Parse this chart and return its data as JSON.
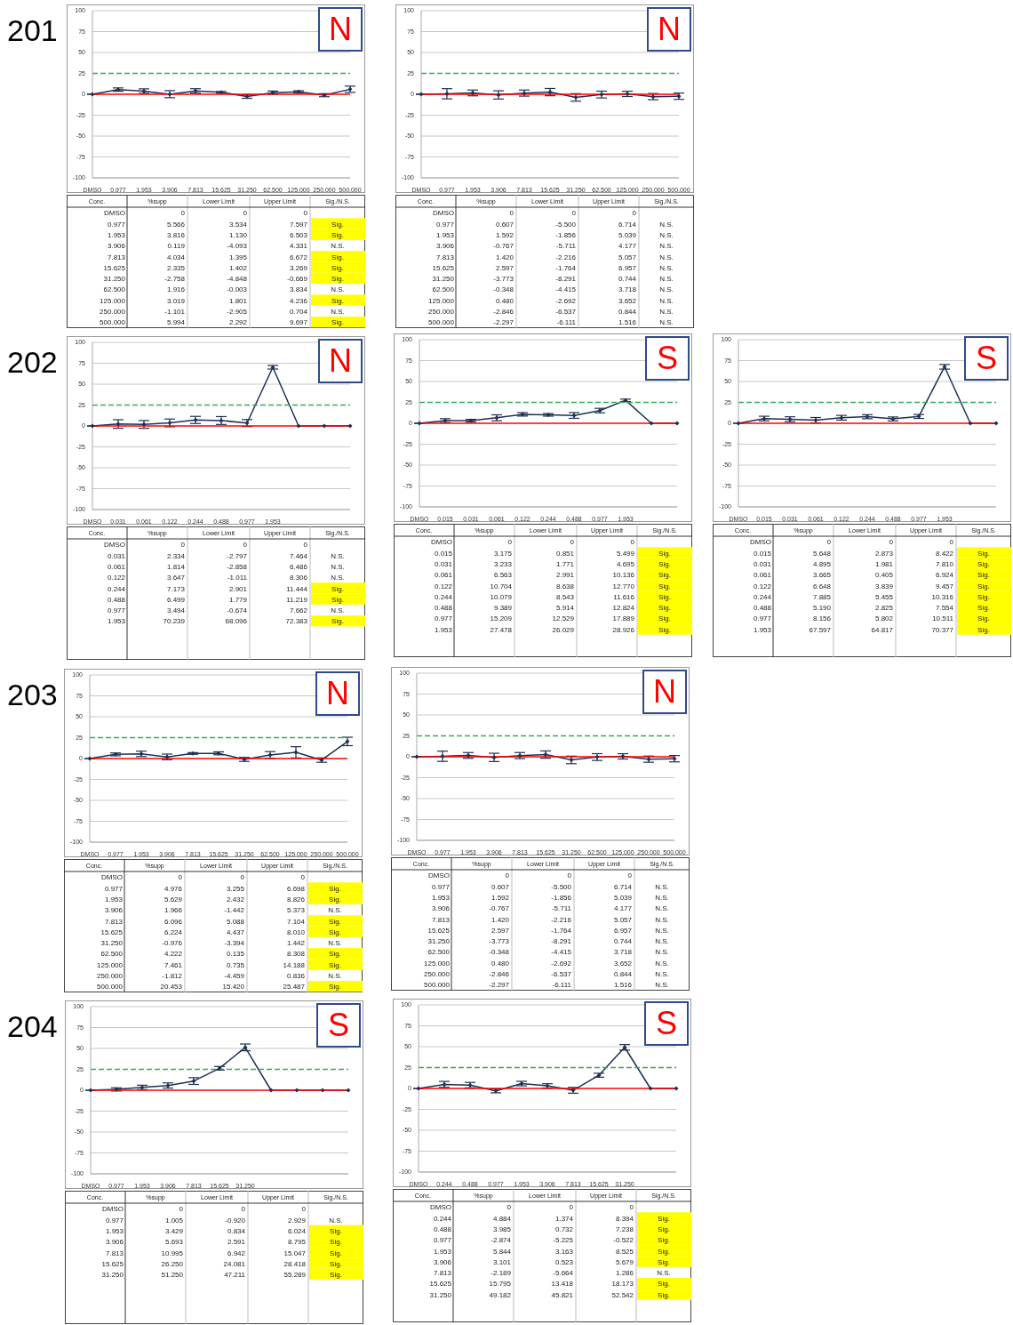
{
  "chart_data": [
    {
      "type": "line",
      "title": "201",
      "categories": [
        "DMSO",
        "0.977",
        "1.953",
        "3.906",
        "7.813",
        "15.625",
        "31.250",
        "62.500",
        "125.000",
        "250.000",
        "500.000"
      ],
      "series": [
        {
          "color": "#1f3050",
          "values": [
            0,
            5.566,
            3.816,
            0.119,
            4.034,
            2.335,
            -2.758,
            1.916,
            3.019,
            -1.101,
            5.994
          ],
          "errors": [
            [
              0,
              0
            ],
            [
              3.534,
              7.597
            ],
            [
              1.13,
              6.503
            ],
            [
              -4.093,
              4.331
            ],
            [
              1.395,
              6.672
            ],
            [
              1.402,
              3.269
            ],
            [
              -4.848,
              -0.669
            ],
            [
              -0.003,
              3.834
            ],
            [
              1.801,
              4.236
            ],
            [
              -2.905,
              0.704
            ],
            [
              2.292,
              9.697
            ]
          ]
        }
      ],
      "ylim": [
        -100,
        100
      ],
      "yticks": [
        -100,
        -75,
        -50,
        -25,
        0,
        25,
        50,
        75,
        100
      ],
      "grid": "y",
      "marker": "diamond",
      "line_style": "solid",
      "ref_lines": [
        {
          "axis": "y",
          "value": 0,
          "color": "#ff0000",
          "line_style": "solid"
        },
        {
          "axis": "y",
          "value": 25,
          "color": "#33aa55",
          "line_style": "dashed"
        }
      ],
      "annotations": [
        "N"
      ]
    },
    {
      "type": "heatmap",
      "ylabel": "Conc.",
      "categories": [
        "%supp",
        "Lower Limit",
        "Upper Limit",
        "Sig./N.S."
      ],
      "y_categories": [
        "DMSO",
        "0.977",
        "1.953",
        "3.906",
        "7.813",
        "15.625",
        "31.250",
        "62.500",
        "125.000",
        "250.000",
        "500.000"
      ],
      "cells": [
        [
          0,
          0,
          0,
          null
        ],
        [
          5.566,
          3.534,
          7.597,
          null
        ],
        [
          3.816,
          1.13,
          6.503,
          null
        ],
        [
          0.119,
          -4.093,
          4.331,
          null
        ],
        [
          4.034,
          1.395,
          6.672,
          null
        ],
        [
          2.335,
          1.402,
          3.269,
          null
        ],
        [
          -2.758,
          -4.848,
          -0.669,
          null
        ],
        [
          1.916,
          -0.003,
          3.834,
          null
        ],
        [
          3.019,
          1.801,
          4.236,
          null
        ],
        [
          -1.101,
          -2.905,
          0.704,
          null
        ],
        [
          5.994,
          2.292,
          9.697,
          null
        ]
      ],
      "cell_labels": [
        [
          "0",
          "0",
          "0",
          null
        ],
        [
          "5.566",
          "3.534",
          "7.597",
          "Sig."
        ],
        [
          "3.816",
          "1.130",
          "6.503",
          "Sig."
        ],
        [
          "0.119",
          "-4.093",
          "4.331",
          "N.S."
        ],
        [
          "4.034",
          "1.395",
          "6.672",
          "Sig."
        ],
        [
          "2.335",
          "1.402",
          "3.269",
          "Sig."
        ],
        [
          "-2.758",
          "-4.848",
          "-0.669",
          "Sig."
        ],
        [
          "1.916",
          "-0.003",
          "3.834",
          "N.S."
        ],
        [
          "3.019",
          "1.801",
          "4.236",
          "Sig."
        ],
        [
          "-1.101",
          "-2.905",
          "0.704",
          "N.S."
        ],
        [
          "5.994",
          "2.292",
          "9.697",
          "Sig."
        ]
      ]
    },
    {
      "type": "line",
      "categories": [
        "DMSO",
        "0.977",
        "1.953",
        "3.906",
        "7.813",
        "15.625",
        "31.250",
        "62.500",
        "125.000",
        "250.000",
        "500.000"
      ],
      "series": [
        {
          "color": "#1f3050",
          "values": [
            0,
            0.607,
            1.592,
            -0.767,
            1.42,
            2.597,
            -3.773,
            -0.348,
            0.48,
            -2.846,
            -2.297
          ],
          "errors": [
            [
              0,
              0
            ],
            [
              -5.5,
              6.714
            ],
            [
              -1.856,
              5.039
            ],
            [
              -5.711,
              4.177
            ],
            [
              -2.216,
              5.057
            ],
            [
              -1.764,
              6.957
            ],
            [
              -8.291,
              0.744
            ],
            [
              -4.415,
              3.718
            ],
            [
              -2.692,
              3.652
            ],
            [
              -6.537,
              0.844
            ],
            [
              -6.111,
              1.516
            ]
          ]
        }
      ],
      "ylim": [
        -100,
        100
      ],
      "yticks": [
        -100,
        -75,
        -50,
        -25,
        0,
        25,
        50,
        75,
        100
      ],
      "grid": "y",
      "marker": "diamond",
      "line_style": "solid",
      "ref_lines": [
        {
          "axis": "y",
          "value": 0,
          "color": "#ff0000",
          "line_style": "solid"
        },
        {
          "axis": "y",
          "value": 25,
          "color": "#33aa55",
          "line_style": "dashed"
        }
      ],
      "annotations": [
        "N"
      ]
    },
    {
      "type": "heatmap",
      "ylabel": "Conc.",
      "categories": [
        "%supp",
        "Lower Limit",
        "Upper Limit",
        "Sig./N.S."
      ],
      "y_categories": [
        "DMSO",
        "0.977",
        "1.953",
        "3.906",
        "7.813",
        "15.625",
        "31.250",
        "62.500",
        "125.000",
        "250.000",
        "500.000"
      ],
      "cells": [
        [
          0,
          0,
          0,
          null
        ],
        [
          0.607,
          -5.5,
          6.714,
          null
        ],
        [
          1.592,
          -1.856,
          5.039,
          null
        ],
        [
          -0.767,
          -5.711,
          4.177,
          null
        ],
        [
          1.42,
          -2.216,
          5.057,
          null
        ],
        [
          2.597,
          -1.764,
          6.957,
          null
        ],
        [
          -3.773,
          -8.291,
          0.744,
          null
        ],
        [
          -0.348,
          -4.415,
          3.718,
          null
        ],
        [
          0.48,
          -2.692,
          3.652,
          null
        ],
        [
          -2.846,
          -6.537,
          0.844,
          null
        ],
        [
          -2.297,
          -6.111,
          1.516,
          null
        ]
      ],
      "cell_labels": [
        [
          "0",
          "0",
          "0",
          null
        ],
        [
          "0.607",
          "-5.500",
          "6.714",
          "N.S."
        ],
        [
          "1.592",
          "-1.856",
          "5.039",
          "N.S."
        ],
        [
          "-0.767",
          "-5.711",
          "4.177",
          "N.S."
        ],
        [
          "1.420",
          "-2.216",
          "5.057",
          "N.S."
        ],
        [
          "2.597",
          "-1.764",
          "6.957",
          "N.S."
        ],
        [
          "-3.773",
          "-8.291",
          "0.744",
          "N.S."
        ],
        [
          "-0.348",
          "-4.415",
          "3.718",
          "N.S."
        ],
        [
          "0.480",
          "-2.692",
          "3.652",
          "N.S."
        ],
        [
          "-2.846",
          "-6.537",
          "0.844",
          "N.S."
        ],
        [
          "-2.297",
          "-6.111",
          "1.516",
          "N.S."
        ]
      ]
    },
    {
      "type": "line",
      "title": "202",
      "categories": [
        "DMSO",
        "0.031",
        "0.061",
        "0.122",
        "0.244",
        "0.488",
        "0.977",
        "1.953",
        null,
        null,
        null
      ],
      "series": [
        {
          "color": "#1f3050",
          "values": [
            0,
            2.334,
            1.814,
            3.647,
            7.173,
            6.499,
            3.494,
            70.239,
            0,
            0,
            0
          ],
          "errors": [
            [
              0,
              0
            ],
            [
              -2.797,
              7.464
            ],
            [
              -2.858,
              6.486
            ],
            [
              -1.011,
              8.306
            ],
            [
              2.901,
              11.444
            ],
            [
              1.779,
              11.219
            ],
            [
              -0.674,
              7.662
            ],
            [
              68.096,
              72.383
            ],
            null,
            null,
            null
          ]
        }
      ],
      "ylim": [
        -100,
        100
      ],
      "yticks": [
        -100,
        -75,
        -50,
        -25,
        0,
        25,
        50,
        75,
        100
      ],
      "grid": "y",
      "marker": "diamond",
      "line_style": "solid",
      "ref_lines": [
        {
          "axis": "y",
          "value": 0,
          "color": "#ff0000",
          "line_style": "solid"
        },
        {
          "axis": "y",
          "value": 25,
          "color": "#33aa55",
          "line_style": "dashed"
        }
      ],
      "annotations": [
        "N"
      ]
    },
    {
      "type": "heatmap",
      "ylabel": "Conc.",
      "categories": [
        "%supp",
        "Lower Limit",
        "Upper Limit",
        "Sig./N.S."
      ],
      "y_categories": [
        "DMSO",
        "0.031",
        "0.061",
        "0.122",
        "0.244",
        "0.488",
        "0.977",
        "1.953"
      ],
      "cells": [
        [
          0,
          0,
          0,
          null
        ],
        [
          2.334,
          -2.797,
          7.464,
          null
        ],
        [
          1.814,
          -2.858,
          6.486,
          null
        ],
        [
          3.647,
          -1.011,
          8.306,
          null
        ],
        [
          7.173,
          2.901,
          11.444,
          null
        ],
        [
          6.499,
          1.779,
          11.219,
          null
        ],
        [
          3.494,
          -0.674,
          7.662,
          null
        ],
        [
          70.239,
          68.096,
          72.383,
          null
        ]
      ],
      "cell_labels": [
        [
          "0",
          "0",
          "0",
          null
        ],
        [
          "2.334",
          "-2.797",
          "7.464",
          "N.S."
        ],
        [
          "1.814",
          "-2.858",
          "6.486",
          "N.S."
        ],
        [
          "3.647",
          "-1.011",
          "8.306",
          "N.S."
        ],
        [
          "7.173",
          "2.901",
          "11.444",
          "Sig."
        ],
        [
          "6.499",
          "1.779",
          "11.219",
          "Sig."
        ],
        [
          "3.494",
          "-0.674",
          "7.662",
          "N.S."
        ],
        [
          "70.239",
          "68.096",
          "72.383",
          "Sig."
        ]
      ]
    },
    {
      "type": "line",
      "categories": [
        "DMSO",
        "0.015",
        "0.031",
        "0.061",
        "0.122",
        "0.244",
        "0.488",
        "0.977",
        "1.953",
        null,
        null
      ],
      "series": [
        {
          "color": "#1f3050",
          "values": [
            0,
            3.175,
            3.233,
            6.563,
            10.704,
            10.079,
            9.389,
            15.209,
            27.478,
            0,
            0
          ],
          "errors": [
            [
              0,
              0
            ],
            [
              0.851,
              5.499
            ],
            [
              1.771,
              4.695
            ],
            [
              2.991,
              10.136
            ],
            [
              8.638,
              12.77
            ],
            [
              8.543,
              11.616
            ],
            [
              5.914,
              12.824
            ],
            [
              12.529,
              17.889
            ],
            [
              26.029,
              28.926
            ],
            null,
            null
          ]
        }
      ],
      "ylim": [
        -100,
        100
      ],
      "yticks": [
        -100,
        -75,
        -50,
        -25,
        0,
        25,
        50,
        75,
        100
      ],
      "grid": "y",
      "marker": "diamond",
      "line_style": "solid",
      "ref_lines": [
        {
          "axis": "y",
          "value": 0,
          "color": "#ff0000",
          "line_style": "solid"
        },
        {
          "axis": "y",
          "value": 25,
          "color": "#33aa55",
          "line_style": "dashed"
        }
      ],
      "annotations": [
        "S"
      ]
    },
    {
      "type": "heatmap",
      "ylabel": "Conc.",
      "categories": [
        "%supp",
        "Lower Limit",
        "Upper Limit",
        "Sig./N.S."
      ],
      "y_categories": [
        "DMSO",
        "0.015",
        "0.031",
        "0.061",
        "0.122",
        "0.244",
        "0.488",
        "0.977",
        "1.953"
      ],
      "cells": [
        [
          0,
          0,
          0,
          null
        ],
        [
          3.175,
          0.851,
          5.499,
          null
        ],
        [
          3.233,
          1.771,
          4.695,
          null
        ],
        [
          6.563,
          2.991,
          10.136,
          null
        ],
        [
          10.704,
          8.638,
          12.77,
          null
        ],
        [
          10.079,
          8.543,
          11.616,
          null
        ],
        [
          9.389,
          5.914,
          12.824,
          null
        ],
        [
          15.209,
          12.529,
          17.889,
          null
        ],
        [
          27.478,
          26.029,
          28.926,
          null
        ]
      ],
      "cell_labels": [
        [
          "0",
          "0",
          "0",
          null
        ],
        [
          "3.175",
          "0.851",
          "5.499",
          "Sig."
        ],
        [
          "3.233",
          "1.771",
          "4.695",
          "Sig."
        ],
        [
          "6.563",
          "2.991",
          "10.136",
          "Sig."
        ],
        [
          "10.704",
          "8.638",
          "12.770",
          "Sig."
        ],
        [
          "10.079",
          "8.543",
          "11.616",
          "Sig."
        ],
        [
          "9.389",
          "5.914",
          "12.824",
          "Sig."
        ],
        [
          "15.209",
          "12.529",
          "17.889",
          "Sig."
        ],
        [
          "27.478",
          "26.029",
          "28.926",
          "Sig."
        ]
      ]
    },
    {
      "type": "line",
      "categories": [
        "DMSO",
        "0.015",
        "0.031",
        "0.061",
        "0.122",
        "0.244",
        "0.488",
        "0.977",
        "1.953",
        null,
        null
      ],
      "series": [
        {
          "color": "#1f3050",
          "values": [
            0,
            5.648,
            4.895,
            3.665,
            6.648,
            7.885,
            5.19,
            8.156,
            67.597,
            0,
            0
          ],
          "errors": [
            [
              0,
              0
            ],
            [
              2.873,
              8.422
            ],
            [
              1.981,
              7.81
            ],
            [
              0.405,
              6.924
            ],
            [
              3.839,
              9.457
            ],
            [
              5.455,
              10.316
            ],
            [
              2.825,
              7.554
            ],
            [
              5.802,
              10.511
            ],
            [
              64.817,
              70.377
            ],
            null,
            null
          ]
        }
      ],
      "ylim": [
        -100,
        100
      ],
      "yticks": [
        -100,
        -75,
        -50,
        -25,
        0,
        25,
        50,
        75,
        100
      ],
      "grid": "y",
      "marker": "diamond",
      "line_style": "solid",
      "ref_lines": [
        {
          "axis": "y",
          "value": 0,
          "color": "#ff0000",
          "line_style": "solid"
        },
        {
          "axis": "y",
          "value": 25,
          "color": "#33aa55",
          "line_style": "dashed"
        }
      ],
      "annotations": [
        "S"
      ]
    },
    {
      "type": "heatmap",
      "ylabel": "Conc.",
      "categories": [
        "%supp",
        "Lower Limit",
        "Upper Limit",
        "Sig./N.S."
      ],
      "y_categories": [
        "DMSO",
        "0.015",
        "0.031",
        "0.061",
        "0.122",
        "0.244",
        "0.488",
        "0.977",
        "1.953"
      ],
      "cells": [
        [
          0,
          0,
          0,
          null
        ],
        [
          5.648,
          2.873,
          8.422,
          null
        ],
        [
          4.895,
          1.981,
          7.81,
          null
        ],
        [
          3.665,
          0.405,
          6.924,
          null
        ],
        [
          6.648,
          3.839,
          9.457,
          null
        ],
        [
          7.885,
          5.455,
          10.316,
          null
        ],
        [
          5.19,
          2.825,
          7.554,
          null
        ],
        [
          8.156,
          5.802,
          10.511,
          null
        ],
        [
          67.597,
          64.817,
          70.377,
          null
        ]
      ],
      "cell_labels": [
        [
          "0",
          "0",
          "0",
          null
        ],
        [
          "5.648",
          "2.873",
          "8.422",
          "Sig."
        ],
        [
          "4.895",
          "1.981",
          "7.810",
          "Sig."
        ],
        [
          "3.665",
          "0.405",
          "6.924",
          "Sig."
        ],
        [
          "6.648",
          "3.839",
          "9.457",
          "Sig."
        ],
        [
          "7.885",
          "5.455",
          "10.316",
          "Sig."
        ],
        [
          "5.190",
          "2.825",
          "7.554",
          "Sig."
        ],
        [
          "8.156",
          "5.802",
          "10.511",
          "Sig."
        ],
        [
          "67.597",
          "64.817",
          "70.377",
          "Sig."
        ]
      ]
    },
    {
      "type": "line",
      "title": "203",
      "categories": [
        "DMSO",
        "0.977",
        "1.953",
        "3.906",
        "7.813",
        "15.625",
        "31.250",
        "62.500",
        "125.000",
        "250.000",
        "500.000"
      ],
      "series": [
        {
          "color": "#1f3050",
          "values": [
            0,
            4.976,
            5.629,
            1.966,
            6.096,
            6.224,
            -0.976,
            4.222,
            7.461,
            -1.812,
            20.453
          ],
          "errors": [
            [
              0,
              0
            ],
            [
              3.255,
              6.698
            ],
            [
              2.432,
              8.826
            ],
            [
              -1.442,
              5.373
            ],
            [
              5.088,
              7.104
            ],
            [
              4.437,
              8.01
            ],
            [
              -3.394,
              1.442
            ],
            [
              0.135,
              8.308
            ],
            [
              0.735,
              14.188
            ],
            [
              -4.459,
              0.836
            ],
            [
              15.42,
              25.487
            ]
          ]
        }
      ],
      "ylim": [
        -100,
        100
      ],
      "yticks": [
        -100,
        -75,
        -50,
        -25,
        0,
        25,
        50,
        75,
        100
      ],
      "grid": "y",
      "marker": "diamond",
      "line_style": "solid",
      "ref_lines": [
        {
          "axis": "y",
          "value": 0,
          "color": "#ff0000",
          "line_style": "solid"
        },
        {
          "axis": "y",
          "value": 25,
          "color": "#33aa55",
          "line_style": "dashed"
        }
      ],
      "annotations": [
        "N"
      ]
    },
    {
      "type": "heatmap",
      "ylabel": "Conc.",
      "categories": [
        "%supp",
        "Lower Limit",
        "Upper Limit",
        "Sig./N.S."
      ],
      "y_categories": [
        "DMSO",
        "0.977",
        "1.953",
        "3.906",
        "7.813",
        "15.625",
        "31.250",
        "62.500",
        "125.000",
        "250.000",
        "500.000"
      ],
      "cells": [
        [
          0,
          0,
          0,
          null
        ],
        [
          4.976,
          3.255,
          6.698,
          null
        ],
        [
          5.629,
          2.432,
          8.826,
          null
        ],
        [
          1.966,
          -1.442,
          5.373,
          null
        ],
        [
          6.096,
          5.088,
          7.104,
          null
        ],
        [
          6.224,
          4.437,
          8.01,
          null
        ],
        [
          -0.976,
          -3.394,
          1.442,
          null
        ],
        [
          4.222,
          0.135,
          8.308,
          null
        ],
        [
          7.461,
          0.735,
          14.188,
          null
        ],
        [
          -1.812,
          -4.459,
          0.836,
          null
        ],
        [
          20.453,
          15.42,
          25.487,
          null
        ]
      ],
      "cell_labels": [
        [
          "0",
          "0",
          "0",
          null
        ],
        [
          "4.976",
          "3.255",
          "6.698",
          "Sig."
        ],
        [
          "5.629",
          "2.432",
          "8.826",
          "Sig."
        ],
        [
          "1.966",
          "-1.442",
          "5.373",
          "N.S."
        ],
        [
          "6.096",
          "5.088",
          "7.104",
          "Sig."
        ],
        [
          "6.224",
          "4.437",
          "8.010",
          "Sig."
        ],
        [
          "-0.976",
          "-3.394",
          "1.442",
          "N.S."
        ],
        [
          "4.222",
          "0.135",
          "8.308",
          "Sig."
        ],
        [
          "7.461",
          "0.735",
          "14.188",
          "Sig."
        ],
        [
          "-1.812",
          "-4.459",
          "0.836",
          "N.S."
        ],
        [
          "20.453",
          "15.420",
          "25.487",
          "Sig."
        ]
      ]
    },
    {
      "type": "line",
      "categories": [
        "DMSO",
        "0.977",
        "1.953",
        "3.906",
        "7.813",
        "15.625",
        "31.250",
        "62.500",
        "125.000",
        "250.000",
        "500.000"
      ],
      "series": [
        {
          "color": "#1f3050",
          "values": [
            0,
            0.607,
            1.592,
            -0.767,
            1.42,
            2.597,
            -3.773,
            -0.348,
            0.48,
            -2.846,
            -2.297
          ],
          "errors": [
            [
              0,
              0
            ],
            [
              -5.5,
              6.714
            ],
            [
              -1.856,
              5.039
            ],
            [
              -5.711,
              4.177
            ],
            [
              -2.216,
              5.057
            ],
            [
              -1.764,
              6.957
            ],
            [
              -8.291,
              0.744
            ],
            [
              -4.415,
              3.718
            ],
            [
              -2.692,
              3.652
            ],
            [
              -6.537,
              0.844
            ],
            [
              -6.111,
              1.516
            ]
          ]
        }
      ],
      "ylim": [
        -100,
        100
      ],
      "yticks": [
        -100,
        -75,
        -50,
        -25,
        0,
        25,
        50,
        75,
        100
      ],
      "grid": "y",
      "marker": "diamond",
      "line_style": "solid",
      "ref_lines": [
        {
          "axis": "y",
          "value": 0,
          "color": "#ff0000",
          "line_style": "solid"
        },
        {
          "axis": "y",
          "value": 25,
          "color": "#33aa55",
          "line_style": "dashed"
        }
      ],
      "annotations": [
        "N"
      ]
    },
    {
      "type": "heatmap",
      "ylabel": "Conc.",
      "categories": [
        "%supp",
        "Lower Limit",
        "Upper Limit",
        "Sig./N.S."
      ],
      "y_categories": [
        "DMSO",
        "0.977",
        "1.953",
        "3.906",
        "7.813",
        "15.625",
        "31.250",
        "62.500",
        "125.000",
        "250.000",
        "500.000"
      ],
      "cells": [
        [
          0,
          0,
          0,
          null
        ],
        [
          0.607,
          -5.5,
          6.714,
          null
        ],
        [
          1.592,
          -1.856,
          5.039,
          null
        ],
        [
          -0.767,
          -5.711,
          4.177,
          null
        ],
        [
          1.42,
          -2.216,
          5.057,
          null
        ],
        [
          2.597,
          -1.764,
          6.957,
          null
        ],
        [
          -3.773,
          -8.291,
          0.744,
          null
        ],
        [
          -0.348,
          -4.415,
          3.718,
          null
        ],
        [
          0.48,
          -2.692,
          3.652,
          null
        ],
        [
          -2.846,
          -6.537,
          0.844,
          null
        ],
        [
          -2.297,
          -6.111,
          1.516,
          null
        ]
      ],
      "cell_labels": [
        [
          "0",
          "0",
          "0",
          null
        ],
        [
          "0.607",
          "-5.500",
          "6.714",
          "N.S."
        ],
        [
          "1.592",
          "-1.856",
          "5.039",
          "N.S."
        ],
        [
          "-0.767",
          "-5.711",
          "4.177",
          "N.S."
        ],
        [
          "1.420",
          "-2.216",
          "5.057",
          "N.S."
        ],
        [
          "2.597",
          "-1.764",
          "6.957",
          "N.S."
        ],
        [
          "-3.773",
          "-8.291",
          "0.744",
          "N.S."
        ],
        [
          "-0.348",
          "-4.415",
          "3.718",
          "N.S."
        ],
        [
          "0.480",
          "-2.692",
          "3.652",
          "N.S."
        ],
        [
          "-2.846",
          "-6.537",
          "0.844",
          "N.S."
        ],
        [
          "-2.297",
          "-6.111",
          "1.516",
          "N.S."
        ]
      ]
    },
    {
      "type": "line",
      "title": "204",
      "categories": [
        "DMSO",
        "0.977",
        "1.953",
        "3.906",
        "7.813",
        "15.625",
        "31.250",
        null,
        null,
        null,
        null
      ],
      "series": [
        {
          "color": "#1f3050",
          "values": [
            0,
            1.005,
            3.429,
            5.693,
            10.995,
            26.25,
            51.25,
            0,
            0,
            0,
            0
          ],
          "errors": [
            [
              0,
              0
            ],
            [
              -0.92,
              2.929
            ],
            [
              0.834,
              6.024
            ],
            [
              2.591,
              8.795
            ],
            [
              6.942,
              15.047
            ],
            [
              24.081,
              28.418
            ],
            [
              47.211,
              55.289
            ],
            null,
            null,
            null,
            null
          ]
        }
      ],
      "ylim": [
        -100,
        100
      ],
      "yticks": [
        -100,
        -75,
        -50,
        -25,
        0,
        25,
        50,
        75,
        100
      ],
      "grid": "y",
      "marker": "diamond",
      "line_style": "solid",
      "ref_lines": [
        {
          "axis": "y",
          "value": 0,
          "color": "#ff0000",
          "line_style": "solid"
        },
        {
          "axis": "y",
          "value": 25,
          "color": "#33aa55",
          "line_style": "dashed"
        }
      ],
      "annotations": [
        "S"
      ]
    },
    {
      "type": "heatmap",
      "ylabel": "Conc.",
      "categories": [
        "%supp",
        "Lower Limit",
        "Upper Limit",
        "Sig./N.S."
      ],
      "y_categories": [
        "DMSO",
        "0.977",
        "1.953",
        "3.906",
        "7.813",
        "15.625",
        "31.250"
      ],
      "cells": [
        [
          0,
          0,
          0,
          null
        ],
        [
          1.005,
          -0.92,
          2.929,
          null
        ],
        [
          3.429,
          0.834,
          6.024,
          null
        ],
        [
          5.693,
          2.591,
          8.795,
          null
        ],
        [
          10.995,
          6.942,
          15.047,
          null
        ],
        [
          26.25,
          24.081,
          28.418,
          null
        ],
        [
          51.25,
          47.211,
          55.289,
          null
        ]
      ],
      "cell_labels": [
        [
          "0",
          "0",
          "0",
          null
        ],
        [
          "1.005",
          "-0.920",
          "2.929",
          "N.S."
        ],
        [
          "3.429",
          "0.834",
          "6.024",
          "Sig."
        ],
        [
          "5.693",
          "2.591",
          "8.795",
          "Sig."
        ],
        [
          "10.995",
          "6.942",
          "15.047",
          "Sig."
        ],
        [
          "26.250",
          "24.081",
          "28.418",
          "Sig."
        ],
        [
          "51.250",
          "47.211",
          "55.289",
          "Sig."
        ]
      ]
    },
    {
      "type": "line",
      "categories": [
        "DMSO",
        "0.244",
        "0.488",
        "0.977",
        "1.953",
        "3.906",
        "7.813",
        "15.625",
        "31.250",
        null,
        null
      ],
      "series": [
        {
          "color": "#1f3050",
          "values": [
            0,
            4.884,
            3.985,
            -2.874,
            5.844,
            3.101,
            -2.189,
            15.795,
            49.182,
            0,
            0
          ],
          "errors": [
            [
              0,
              0
            ],
            [
              1.374,
              8.394
            ],
            [
              0.732,
              7.238
            ],
            [
              -5.225,
              -0.522
            ],
            [
              3.163,
              8.525
            ],
            [
              0.523,
              5.679
            ],
            [
              -5.664,
              1.286
            ],
            [
              13.418,
              18.173
            ],
            [
              45.821,
              52.542
            ],
            null,
            null
          ]
        }
      ],
      "ylim": [
        -100,
        100
      ],
      "yticks": [
        -100,
        -75,
        -50,
        -25,
        0,
        25,
        50,
        75,
        100
      ],
      "grid": "y",
      "marker": "diamond",
      "line_style": "solid",
      "ref_lines": [
        {
          "axis": "y",
          "value": 0,
          "color": "#ff0000",
          "line_style": "solid"
        },
        {
          "axis": "y",
          "value": 25,
          "color": "#33aa55",
          "line_style": "dashed"
        }
      ],
      "annotations": [
        "S"
      ]
    },
    {
      "type": "heatmap",
      "ylabel": "Conc.",
      "categories": [
        "%supp",
        "Lower Limit",
        "Upper Limit",
        "Sig./N.S."
      ],
      "y_categories": [
        "DMSO",
        "0.244",
        "0.488",
        "0.977",
        "1.953",
        "3.906",
        "7.813",
        "15.625",
        "31.250"
      ],
      "cells": [
        [
          0,
          0,
          0,
          null
        ],
        [
          4.884,
          1.374,
          8.394,
          null
        ],
        [
          3.985,
          0.732,
          7.238,
          null
        ],
        [
          -2.874,
          -5.225,
          -0.522,
          null
        ],
        [
          5.844,
          3.163,
          8.525,
          null
        ],
        [
          3.101,
          0.523,
          5.679,
          null
        ],
        [
          -2.189,
          -5.664,
          1.286,
          null
        ],
        [
          15.795,
          13.418,
          18.173,
          null
        ],
        [
          49.182,
          45.821,
          52.542,
          null
        ]
      ],
      "cell_labels": [
        [
          "0",
          "0",
          "0",
          null
        ],
        [
          "4.884",
          "1.374",
          "8.394",
          "Sig."
        ],
        [
          "3.985",
          "0.732",
          "7.238",
          "Sig."
        ],
        [
          "-2.874",
          "-5.225",
          "-0.522",
          "Sig."
        ],
        [
          "5.844",
          "3.163",
          "8.525",
          "Sig."
        ],
        [
          "3.101",
          "0.523",
          "5.679",
          "Sig."
        ],
        [
          "-2.189",
          "-5.664",
          "1.286",
          "N.S."
        ],
        [
          "15.795",
          "13.418",
          "18.173",
          "Sig."
        ],
        [
          "49.182",
          "45.821",
          "52.542",
          "Sig."
        ]
      ]
    }
  ]
}
